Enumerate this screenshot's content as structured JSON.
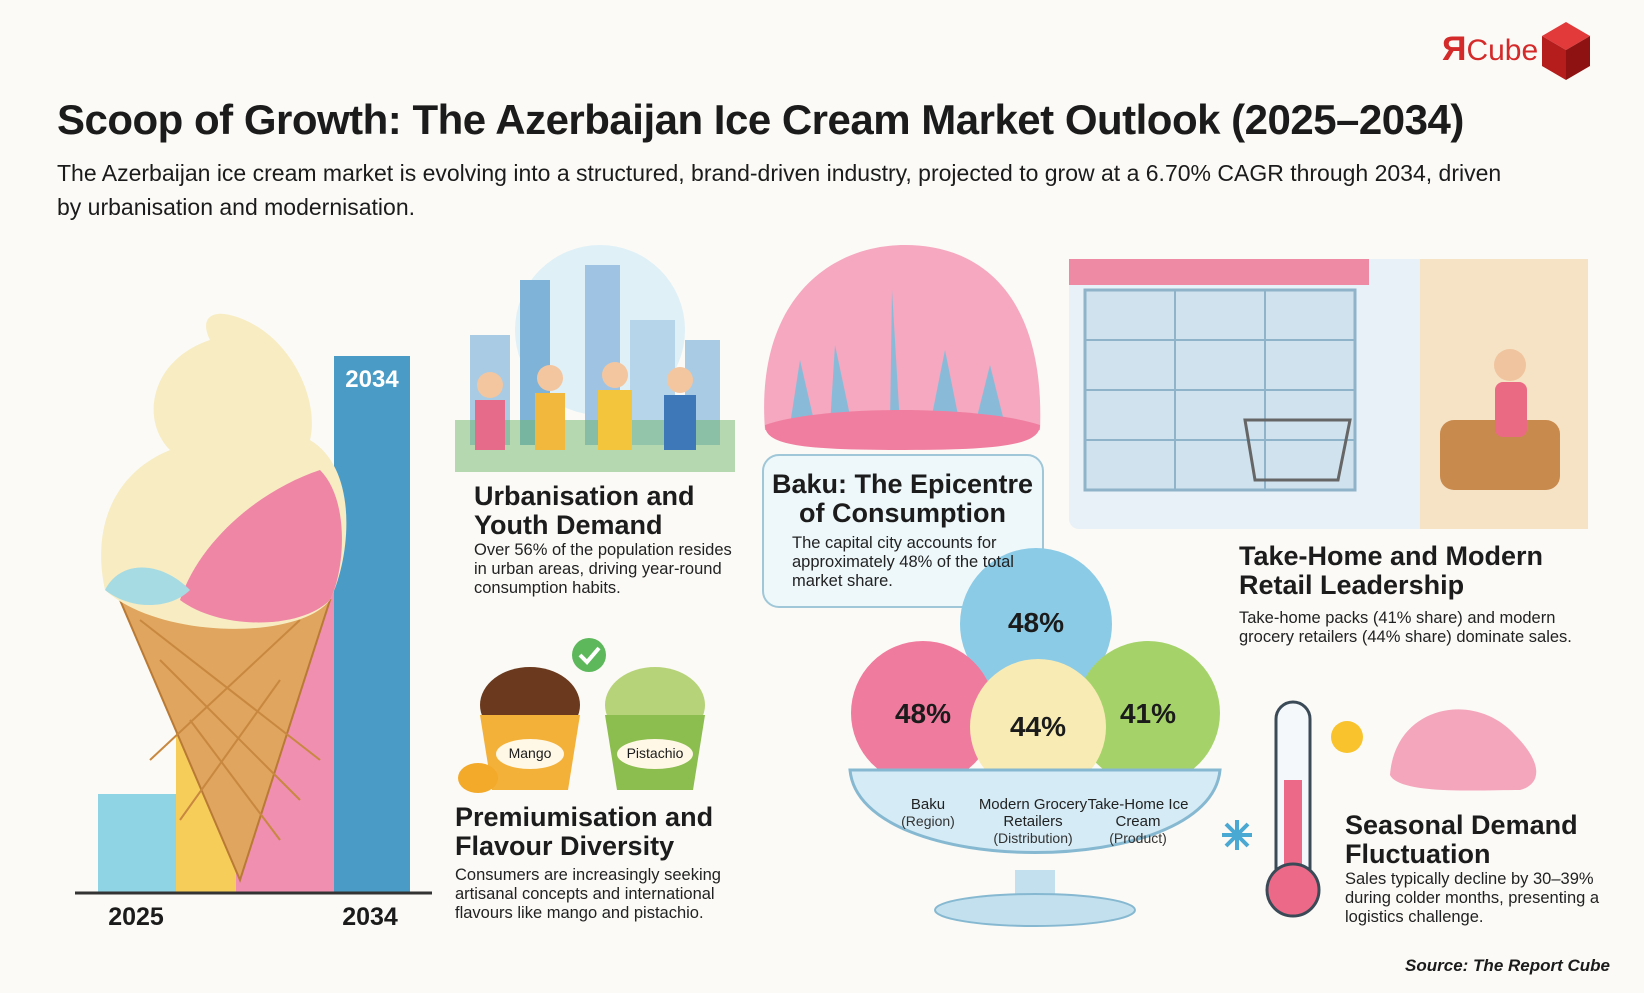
{
  "logo": {
    "mark": "Я",
    "text": "Cube"
  },
  "header": {
    "title": "Scoop of Growth: The Azerbaijan Ice Cream Market Outlook (2025–2034)",
    "subtitle": "The Azerbaijan ice cream market is evolving into a structured, brand-driven industry, projected to grow at a 6.70% CAGR through 2034, driven by urbanisation and modernisation."
  },
  "growth_chart": {
    "bar_label": "2034",
    "axis_labels": [
      "2025",
      "2034"
    ]
  },
  "sections": [
    {
      "title": "Urbanisation and Youth Demand",
      "body": "Over 56% of the population resides in urban areas, driving year-round consumption habits."
    },
    {
      "title": "Premiumisation and Flavour Diversity",
      "body": "Consumers are increasingly seeking artisanal concepts and international flavours like mango and pistachio."
    },
    {
      "title": "Baku: The Epicentre of Consumption",
      "body": "The capital city accounts for approximately 48% of the total market share."
    },
    {
      "title": "Take-Home and Modern Retail Leadership",
      "body": "Take-home packs (41% share) and modern grocery retailers (44% share) dominate sales."
    },
    {
      "title": "Seasonal Demand Fluctuation",
      "body": "Sales typically decline by 30–39% during colder months, presenting a logistics challenge."
    }
  ],
  "cup_labels": [
    "Mango",
    "Pistachio"
  ],
  "top_scoop": "48%",
  "scoops": [
    {
      "value": "48%",
      "label": "Baku",
      "sublabel": "(Region)"
    },
    {
      "value": "44%",
      "label": "Modern Grocery Retailers",
      "sublabel": "(Distribution)"
    },
    {
      "value": "41%",
      "label": "Take-Home Ice Cream",
      "sublabel": "(Product)"
    }
  ],
  "source": "Source: The Report Cube"
}
